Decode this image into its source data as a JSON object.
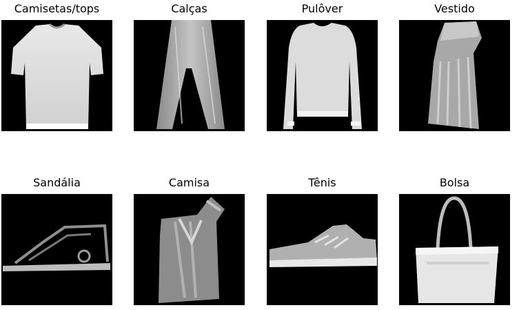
{
  "items": [
    {
      "label": "Camisetas/tops",
      "icon": "tshirt-image"
    },
    {
      "label": "Calças",
      "icon": "trousers-image"
    },
    {
      "label": "Pulôver",
      "icon": "pullover-image"
    },
    {
      "label": "Vestido",
      "icon": "dress-image"
    },
    {
      "label": "Sandália",
      "icon": "sandal-image"
    },
    {
      "label": "Camisa",
      "icon": "shirt-image"
    },
    {
      "label": "Tênis",
      "icon": "sneaker-image"
    },
    {
      "label": "Bolsa",
      "icon": "bag-image"
    }
  ]
}
